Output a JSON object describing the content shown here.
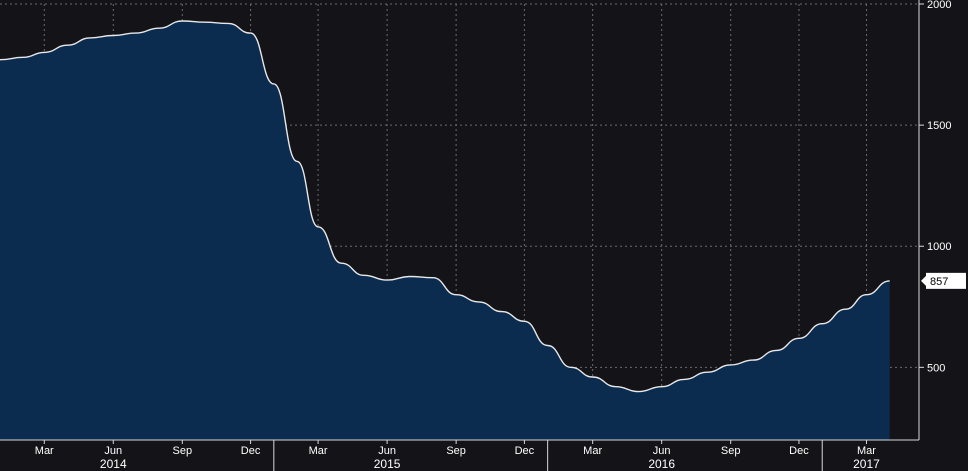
{
  "chart_data": {
    "type": "area",
    "title": "",
    "xlabel": "",
    "ylabel": "",
    "ylim": [
      200,
      2000
    ],
    "grid": true,
    "legend": "none",
    "colors": {
      "background": "#111113",
      "plot_bg": "#141418",
      "fill": "#0c2c4f",
      "line": "#e8e8e8",
      "grid": "#6a6a6a",
      "text": "#ffffff"
    },
    "y_ticks": [
      2000,
      1500,
      1000,
      500
    ],
    "x_month_ticks": [
      {
        "label": "Mar",
        "date": "2014-03"
      },
      {
        "label": "Jun",
        "date": "2014-06"
      },
      {
        "label": "Sep",
        "date": "2014-09"
      },
      {
        "label": "Dec",
        "date": "2014-12"
      },
      {
        "label": "Mar",
        "date": "2015-03"
      },
      {
        "label": "Jun",
        "date": "2015-06"
      },
      {
        "label": "Sep",
        "date": "2015-09"
      },
      {
        "label": "Dec",
        "date": "2015-12"
      },
      {
        "label": "Mar",
        "date": "2016-03"
      },
      {
        "label": "Jun",
        "date": "2016-06"
      },
      {
        "label": "Sep",
        "date": "2016-09"
      },
      {
        "label": "Dec",
        "date": "2016-12"
      },
      {
        "label": "Mar",
        "date": "2017-03"
      }
    ],
    "x_year_labels": [
      {
        "label": "2014",
        "date": "2014-06"
      },
      {
        "label": "2015",
        "date": "2015-06"
      },
      {
        "label": "2016",
        "date": "2016-06"
      },
      {
        "label": "2017",
        "date": "2017-03"
      }
    ],
    "year_boundaries": [
      "2015-01",
      "2016-01",
      "2017-01"
    ],
    "last_value_label": "857",
    "series": [
      {
        "x": [
          "2014-01",
          "2014-02",
          "2014-03",
          "2014-04",
          "2014-05",
          "2014-06",
          "2014-07",
          "2014-08",
          "2014-09",
          "2014-10",
          "2014-11",
          "2014-12",
          "2015-01",
          "2015-02",
          "2015-03",
          "2015-04",
          "2015-05",
          "2015-06",
          "2015-07",
          "2015-08",
          "2015-09",
          "2015-10",
          "2015-11",
          "2015-12",
          "2016-01",
          "2016-02",
          "2016-03",
          "2016-04",
          "2016-05",
          "2016-06",
          "2016-07",
          "2016-08",
          "2016-09",
          "2016-10",
          "2016-11",
          "2016-12",
          "2017-01",
          "2017-02",
          "2017-03",
          "2017-04"
        ],
        "values": [
          1770,
          1780,
          1800,
          1830,
          1860,
          1870,
          1880,
          1900,
          1930,
          1925,
          1920,
          1880,
          1670,
          1350,
          1080,
          930,
          880,
          860,
          875,
          870,
          800,
          770,
          730,
          690,
          590,
          500,
          460,
          420,
          400,
          420,
          450,
          480,
          510,
          530,
          570,
          620,
          680,
          740,
          800,
          857
        ]
      }
    ]
  }
}
